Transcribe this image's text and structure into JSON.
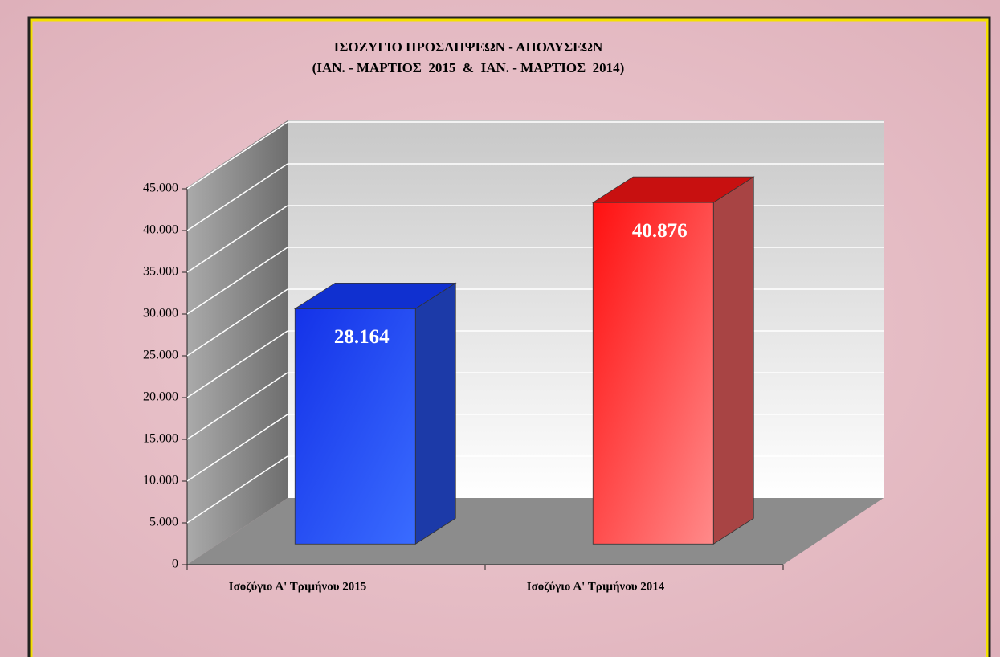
{
  "chart_data": {
    "type": "bar3d",
    "title": "ΙΣΟΖΥΓΙΟ ΠΡΟΣΛΗΨΕΩΝ - ΑΠΟΛΥΣΕΩΝ",
    "subtitle": "(ΙΑΝ. - ΜΑΡΤΙΟΣ  2015  &  ΙΑΝ. - ΜΑΡΤΙΟΣ  2014)",
    "categories": [
      "Ισοζύγιο Α' Τριμήνου 2015",
      "Ισοζύγιο Α' Τριμήνου 2014"
    ],
    "values": [
      28164,
      40876
    ],
    "value_labels": [
      "28.164",
      "40.876"
    ],
    "colors": [
      "#2050f8",
      "#ff3030"
    ],
    "ylim": [
      0,
      45000
    ],
    "yticks": [
      0,
      {
        "value": 5000,
        "label": "5.000"
      },
      {
        "value": 10000,
        "label": "10.000"
      },
      {
        "value": 15000,
        "label": "15.000"
      },
      {
        "value": 20000,
        "label": "20.000"
      },
      {
        "value": 25000,
        "label": "25.000"
      },
      {
        "value": 30000,
        "label": "30.000"
      },
      {
        "value": 35000,
        "label": "35.000"
      },
      {
        "value": 40000,
        "label": "40.000"
      },
      {
        "value": 45000,
        "label": "45.000"
      }
    ],
    "grid": true
  }
}
